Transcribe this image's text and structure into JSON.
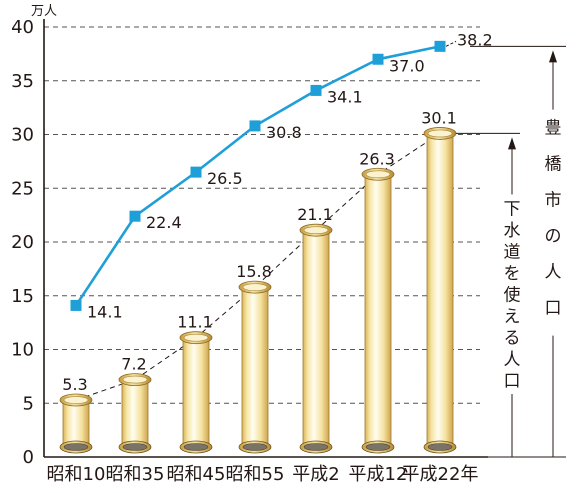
{
  "chart_data": {
    "type": "bar",
    "title": "",
    "xlabel": "",
    "ylabel": "",
    "y_unit": "万人",
    "ylim": [
      0,
      40
    ],
    "y_ticks": [
      0,
      5,
      10,
      15,
      20,
      25,
      30,
      35,
      40
    ],
    "grid": true,
    "categories": [
      "昭和10",
      "昭和35",
      "昭和45",
      "昭和55",
      "平成2",
      "平成12",
      "平成22年"
    ],
    "series": [
      {
        "name": "豊橋市の人口",
        "type": "line",
        "color": "#1e9fd8",
        "values": [
          14.1,
          22.4,
          26.5,
          30.8,
          34.1,
          37.0,
          38.2
        ],
        "value_labels": [
          "14.1",
          "22.4",
          "26.5",
          "30.8",
          "34.1",
          "37.0",
          "38.2"
        ]
      },
      {
        "name": "下水道を使える人口",
        "type": "bar",
        "color": "#f6e7a4",
        "values": [
          5.3,
          7.2,
          11.1,
          15.8,
          21.1,
          26.3,
          30.1
        ],
        "value_labels": [
          "5.3",
          "7.2",
          "11.1",
          "15.8",
          "21.1",
          "26.3",
          "30.1"
        ]
      }
    ]
  }
}
